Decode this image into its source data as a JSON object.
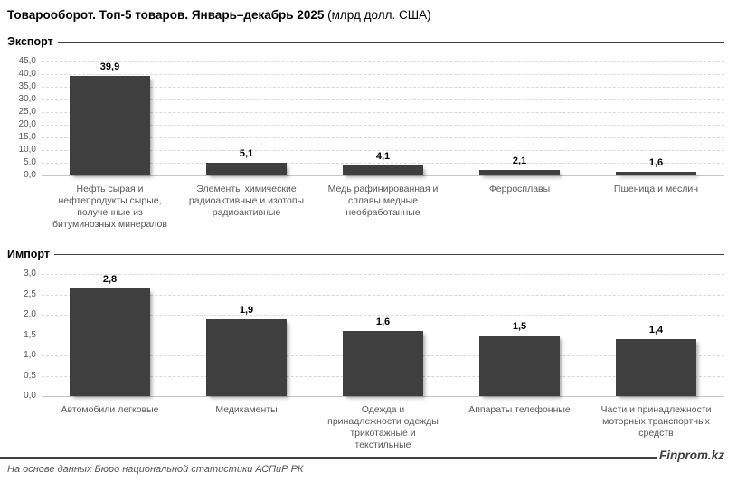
{
  "title": {
    "bold": "Товарооборот. Топ-5 товаров. Январь–декабрь 2025",
    "normal": " (млрд долл. США)"
  },
  "footer": {
    "source": "На основе данных Бюро национальной статистики АСПиР РК",
    "brand": "Finprom.kz"
  },
  "colors": {
    "bar": "#3f3f3f",
    "gridline": "#d9d9d9",
    "axis_text": "#595959",
    "value_text": "#000000",
    "rule": "#404040"
  },
  "chart_data": [
    {
      "type": "bar",
      "section_label": "Экспорт",
      "title": "Экспорт (млрд долл. США)",
      "categories": [
        "Нефть сырая и нефтепродукты сырые, полученные из битуминозных минералов",
        "Элементы химические радиоактивные и изотопы радиоактивные",
        "Медь рафинированная и сплавы медные необработанные",
        "Ферросплавы",
        "Пшеница и меслин"
      ],
      "values": [
        39.9,
        5.1,
        4.1,
        2.1,
        1.6
      ],
      "value_labels": [
        "39,9",
        "5,1",
        "4,1",
        "2,1",
        "1,6"
      ],
      "ylim": [
        0,
        45
      ],
      "ytick_step": 5,
      "ytick_labels": [
        "45,0",
        "40,0",
        "35,0",
        "30,0",
        "25,0",
        "20,0",
        "15,0",
        "10,0",
        "5,0",
        "0,0"
      ],
      "grid": true,
      "legend": false
    },
    {
      "type": "bar",
      "section_label": "Импорт",
      "title": "Импорт (млрд долл. США)",
      "categories": [
        "Автомобили легковые",
        "Медикаменты",
        "Одежда и принадлежности одежды трикотажные и текстильные",
        "Аппараты телефонные",
        "Части и принадлежности моторных транспортных средств"
      ],
      "values": [
        2.8,
        1.9,
        1.6,
        1.5,
        1.4
      ],
      "value_labels": [
        "2,8",
        "1,9",
        "1,6",
        "1,5",
        "1,4"
      ],
      "ylim": [
        0,
        3
      ],
      "ytick_step": 0.5,
      "ytick_labels": [
        "3,0",
        "2,5",
        "2,0",
        "1,5",
        "1,0",
        "0,5",
        "0,0"
      ],
      "grid": true,
      "legend": false
    }
  ]
}
